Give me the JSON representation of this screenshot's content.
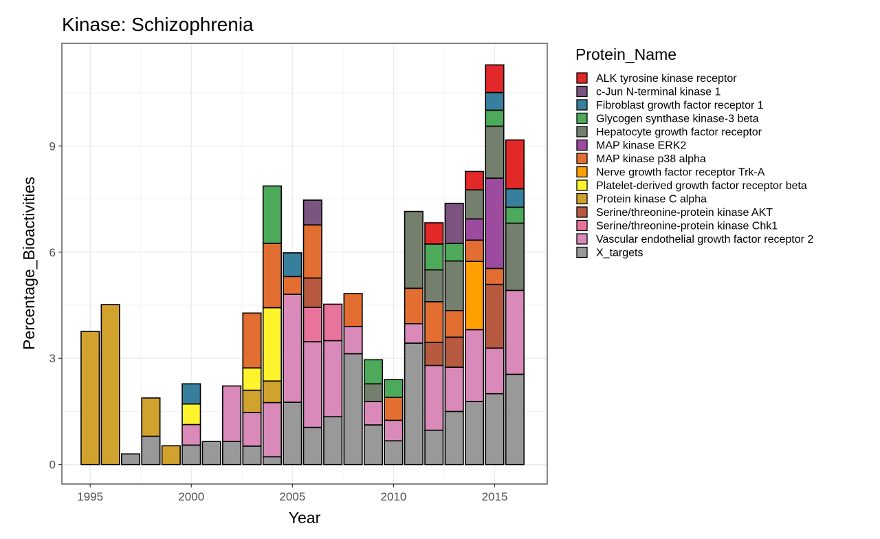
{
  "chart_data": {
    "type": "bar",
    "stacked": true,
    "title": "Kinase: Schizophrenia",
    "xlabel": "Year",
    "ylabel": "Percentage_Bioactivities",
    "xlim": [
      1993.6,
      2017.6
    ],
    "ylim": [
      -0.55,
      11.9
    ],
    "x_ticks": [
      1995,
      2000,
      2005,
      2010,
      2015
    ],
    "y_ticks": [
      0,
      3,
      6,
      9
    ],
    "grid": true,
    "legend": {
      "title": "Protein_Name",
      "position": "right"
    },
    "series": [
      {
        "name": "X_targets",
        "color": "#999999",
        "values": [
          0,
          0,
          0.3,
          0.8,
          0,
          0.55,
          0.65,
          0.65,
          0.52,
          0.22,
          1.76,
          1.05,
          1.35,
          3.13,
          1.12,
          0.67,
          3.43,
          0.97,
          1.5,
          1.78,
          2.0,
          2.55
        ]
      },
      {
        "name": "Vascular endothelial growth factor receptor 2",
        "color": "#D98AB8",
        "values": [
          0,
          0,
          0,
          0,
          0,
          0.58,
          0,
          1.57,
          0.95,
          1.53,
          3.05,
          2.42,
          2.15,
          0.77,
          0.66,
          0.58,
          0.55,
          1.83,
          1.25,
          2.03,
          1.29,
          2.37
        ]
      },
      {
        "name": "Serine/threonine-protein kinase Chk1",
        "color": "#E8739B",
        "values": [
          0,
          0,
          0,
          0,
          0,
          0,
          0,
          0,
          0,
          0,
          0,
          0.97,
          1.03,
          0,
          0,
          0,
          0,
          0,
          0,
          0,
          0,
          0
        ]
      },
      {
        "name": "Serine/threonine-protein kinase AKT",
        "color": "#B85A3F",
        "values": [
          0,
          0,
          0,
          0,
          0,
          0,
          0,
          0,
          0,
          0,
          0,
          0.83,
          0,
          0,
          0,
          0,
          0,
          0.65,
          0.85,
          0,
          1.8,
          0
        ]
      },
      {
        "name": "Protein kinase C alpha",
        "color": "#D1A22E",
        "values": [
          3.76,
          4.52,
          0,
          1.08,
          0.53,
          0,
          0,
          0,
          0.63,
          0.61,
          0,
          0,
          0,
          0,
          0,
          0,
          0,
          0,
          0,
          0,
          0,
          0
        ]
      },
      {
        "name": "Platelet-derived growth factor receptor beta",
        "color": "#FFF32E",
        "values": [
          0,
          0,
          0,
          0,
          0,
          0.58,
          0,
          0,
          0.63,
          2.07,
          0,
          0,
          0,
          0,
          0,
          0,
          0,
          0,
          0,
          0,
          0,
          0
        ]
      },
      {
        "name": "Nerve growth factor receptor Trk-A",
        "color": "#FFA000",
        "values": [
          0,
          0,
          0,
          0,
          0,
          0,
          0,
          0,
          0,
          0,
          0,
          0,
          0,
          0,
          0,
          0,
          0,
          0,
          0,
          1.93,
          0,
          0
        ]
      },
      {
        "name": "MAP kinase p38 alpha",
        "color": "#E26F31",
        "values": [
          0,
          0,
          0,
          0,
          0,
          0,
          0,
          0,
          1.55,
          1.82,
          0.5,
          1.5,
          0,
          0.93,
          0,
          0.65,
          1.0,
          1.15,
          0.75,
          0.6,
          0.45,
          0
        ]
      },
      {
        "name": "MAP kinase ERK2",
        "color": "#9C4B9F",
        "values": [
          0,
          0,
          0,
          0,
          0,
          0,
          0,
          0,
          0,
          0,
          0,
          0,
          0,
          0,
          0,
          0,
          0,
          0,
          0,
          0.6,
          2.55,
          0
        ]
      },
      {
        "name": "Hepatocyte growth factor receptor",
        "color": "#74806D",
        "values": [
          0,
          0,
          0,
          0,
          0,
          0,
          0,
          0,
          0,
          0,
          0,
          0,
          0,
          0,
          0.5,
          0,
          2.17,
          0.9,
          1.4,
          0.82,
          1.47,
          1.9
        ]
      },
      {
        "name": "Glycogen synthase kinase-3 beta",
        "color": "#4CAA5A",
        "values": [
          0,
          0,
          0,
          0,
          0,
          0,
          0,
          0,
          0,
          1.62,
          0,
          0,
          0,
          0,
          0.68,
          0.5,
          0,
          0.73,
          0.5,
          0,
          0.45,
          0.45
        ]
      },
      {
        "name": "Fibroblast growth factor receptor 1",
        "color": "#377F9C",
        "values": [
          0,
          0,
          0,
          0,
          0,
          0.57,
          0,
          0,
          0,
          0,
          0.67,
          0,
          0,
          0,
          0,
          0,
          0,
          0,
          0,
          0,
          0.5,
          0.52
        ]
      },
      {
        "name": "c-Jun N-terminal kinase 1",
        "color": "#7B5580",
        "values": [
          0,
          0,
          0,
          0,
          0,
          0,
          0,
          0,
          0,
          0,
          0,
          0.7,
          0,
          0,
          0,
          0,
          0,
          0,
          1.13,
          0,
          0,
          0
        ]
      },
      {
        "name": "ALK tyrosine kinase receptor",
        "color": "#E22828",
        "values": [
          0,
          0,
          0,
          0,
          0,
          0,
          0,
          0,
          0,
          0,
          0,
          0,
          0,
          0,
          0,
          0,
          0,
          0.6,
          0,
          0.52,
          0.78,
          1.38
        ]
      }
    ],
    "x": [
      1995,
      1996,
      1997,
      1998,
      1999,
      2000,
      2001,
      2002,
      2003,
      2004,
      2005,
      2006,
      2007,
      2008,
      2009,
      2010,
      2011,
      2012,
      2013,
      2014,
      2015,
      2016
    ],
    "legend_order": [
      "ALK tyrosine kinase receptor",
      "c-Jun N-terminal kinase 1",
      "Fibroblast growth factor receptor 1",
      "Glycogen synthase kinase-3 beta",
      "Hepatocyte growth factor receptor",
      "MAP kinase ERK2",
      "MAP kinase p38 alpha",
      "Nerve growth factor receptor Trk-A",
      "Platelet-derived growth factor receptor beta",
      "Protein kinase C alpha",
      "Serine/threonine-protein kinase AKT",
      "Serine/threonine-protein kinase Chk1",
      "Vascular endothelial growth factor receptor 2",
      "X_targets"
    ]
  }
}
